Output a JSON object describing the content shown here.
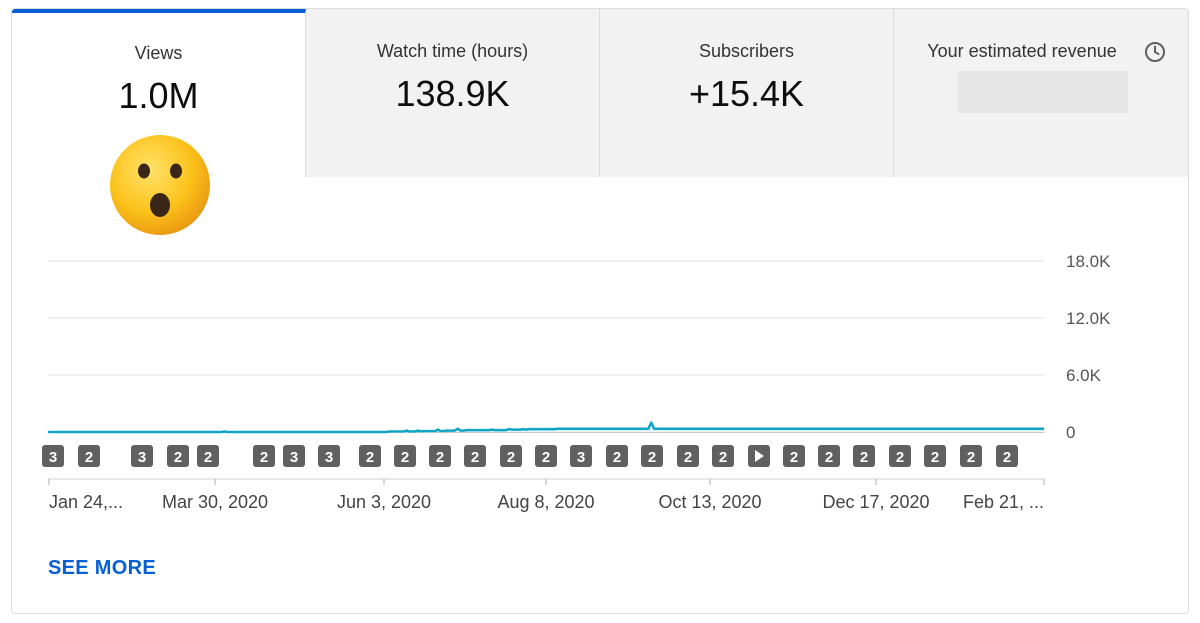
{
  "tabs": [
    {
      "label": "Views",
      "value": "1.0M",
      "active": true
    },
    {
      "label": "Watch time (hours)",
      "value": "138.9K",
      "active": false
    },
    {
      "label": "Subscribers",
      "value": "+15.4K",
      "active": false
    },
    {
      "label": "Your estimated revenue",
      "value": "",
      "active": false
    }
  ],
  "see_more_label": "SEE MORE",
  "colors": {
    "accent": "#065fd4",
    "line": "#12a4c4",
    "fill": "#e4f5fa",
    "marker": "#606060"
  },
  "icons": {
    "emoji": "astonished-face-icon",
    "revenue_info": "clock-icon"
  },
  "chart_data": {
    "type": "area",
    "title": "Views",
    "y_ticks": [
      "18.0K",
      "12.0K",
      "6.0K",
      "0"
    ],
    "ylim": [
      0,
      18000
    ],
    "x_tick_labels": [
      "Jan 24,...",
      "Mar 30, 2020",
      "Jun 3, 2020",
      "Aug 8, 2020",
      "Oct 13, 2020",
      "Dec 17, 2020",
      "Feb 21, ..."
    ],
    "markers": [
      "3",
      "2",
      "3",
      "2",
      "2",
      "2",
      "3",
      "3",
      "2",
      "2",
      "2",
      "2",
      "2",
      "2",
      "3",
      "2",
      "2",
      "2",
      "2",
      "play",
      "2",
      "2",
      "2",
      "2",
      "2",
      "2",
      "2"
    ],
    "series": [
      {
        "name": "Views",
        "values": [
          0,
          0,
          0,
          0,
          0,
          0,
          0,
          0,
          0,
          0,
          0,
          0,
          0,
          0,
          0,
          0,
          0,
          0,
          0,
          0,
          0,
          0,
          0,
          0,
          0,
          0,
          0,
          0,
          0,
          0,
          0,
          0,
          0,
          0,
          0,
          0,
          0,
          0,
          0,
          0,
          0,
          0,
          0,
          0,
          0,
          0,
          0,
          0,
          0,
          0,
          0,
          0,
          0,
          0,
          0,
          0,
          0,
          0,
          0,
          0,
          0,
          0,
          50,
          0,
          0,
          0,
          0,
          0,
          0,
          0,
          0,
          0,
          0,
          0,
          0,
          0,
          0,
          0,
          0,
          0,
          0,
          0,
          0,
          0,
          0,
          0,
          0,
          0,
          0,
          0,
          0,
          0,
          0,
          0,
          0,
          0,
          0,
          0,
          0,
          0,
          0,
          0,
          0,
          0,
          0,
          0,
          0,
          0,
          0,
          0,
          0,
          0,
          0,
          0,
          0,
          0,
          0,
          0,
          0,
          0,
          50,
          50,
          50,
          50,
          50,
          50,
          150,
          50,
          50,
          50,
          150,
          50,
          100,
          100,
          100,
          100,
          100,
          250,
          100,
          100,
          150,
          150,
          150,
          150,
          350,
          150,
          150,
          200,
          200,
          200,
          200,
          200,
          200,
          200,
          200,
          200,
          250,
          200,
          200,
          200,
          200,
          200,
          300,
          250,
          250,
          250,
          250,
          300,
          250,
          300,
          300,
          300,
          300,
          300,
          300,
          300,
          300,
          300,
          300,
          350,
          350,
          350,
          350,
          350,
          350,
          350,
          350,
          350,
          350,
          350,
          350,
          350,
          350,
          350,
          350,
          350,
          350,
          350,
          350,
          350,
          350,
          350,
          350,
          350,
          350,
          350,
          350,
          350,
          350,
          350,
          350,
          350,
          1000,
          350,
          350,
          350,
          350,
          350,
          350,
          350,
          350,
          350,
          350,
          350,
          350,
          350,
          350,
          350,
          350,
          350,
          350,
          350,
          350,
          350,
          350,
          350,
          350,
          350,
          350,
          350,
          350,
          350,
          350,
          350,
          350,
          350,
          350,
          350,
          350,
          350,
          350,
          350,
          350,
          350,
          350,
          350,
          350,
          350,
          350,
          350,
          350,
          350,
          350,
          350,
          350,
          350,
          350,
          350,
          350,
          350,
          350,
          350,
          350,
          350,
          350,
          350,
          350,
          350,
          350,
          350,
          350,
          350,
          350,
          350,
          350,
          350,
          350,
          350,
          350,
          350,
          350,
          350,
          350,
          350,
          350,
          350,
          350,
          350,
          350,
          350,
          350,
          350,
          350,
          350,
          350,
          350,
          350,
          350,
          350,
          350,
          350,
          350,
          350,
          350,
          350,
          350,
          350,
          350,
          350,
          350,
          350,
          350,
          350,
          350,
          350,
          350,
          350,
          350,
          350,
          350,
          350,
          350,
          350,
          350,
          350,
          350,
          350,
          350,
          350,
          350,
          350,
          350,
          350,
          350,
          350,
          350,
          350,
          350,
          350,
          350,
          350
        ]
      }
    ]
  }
}
